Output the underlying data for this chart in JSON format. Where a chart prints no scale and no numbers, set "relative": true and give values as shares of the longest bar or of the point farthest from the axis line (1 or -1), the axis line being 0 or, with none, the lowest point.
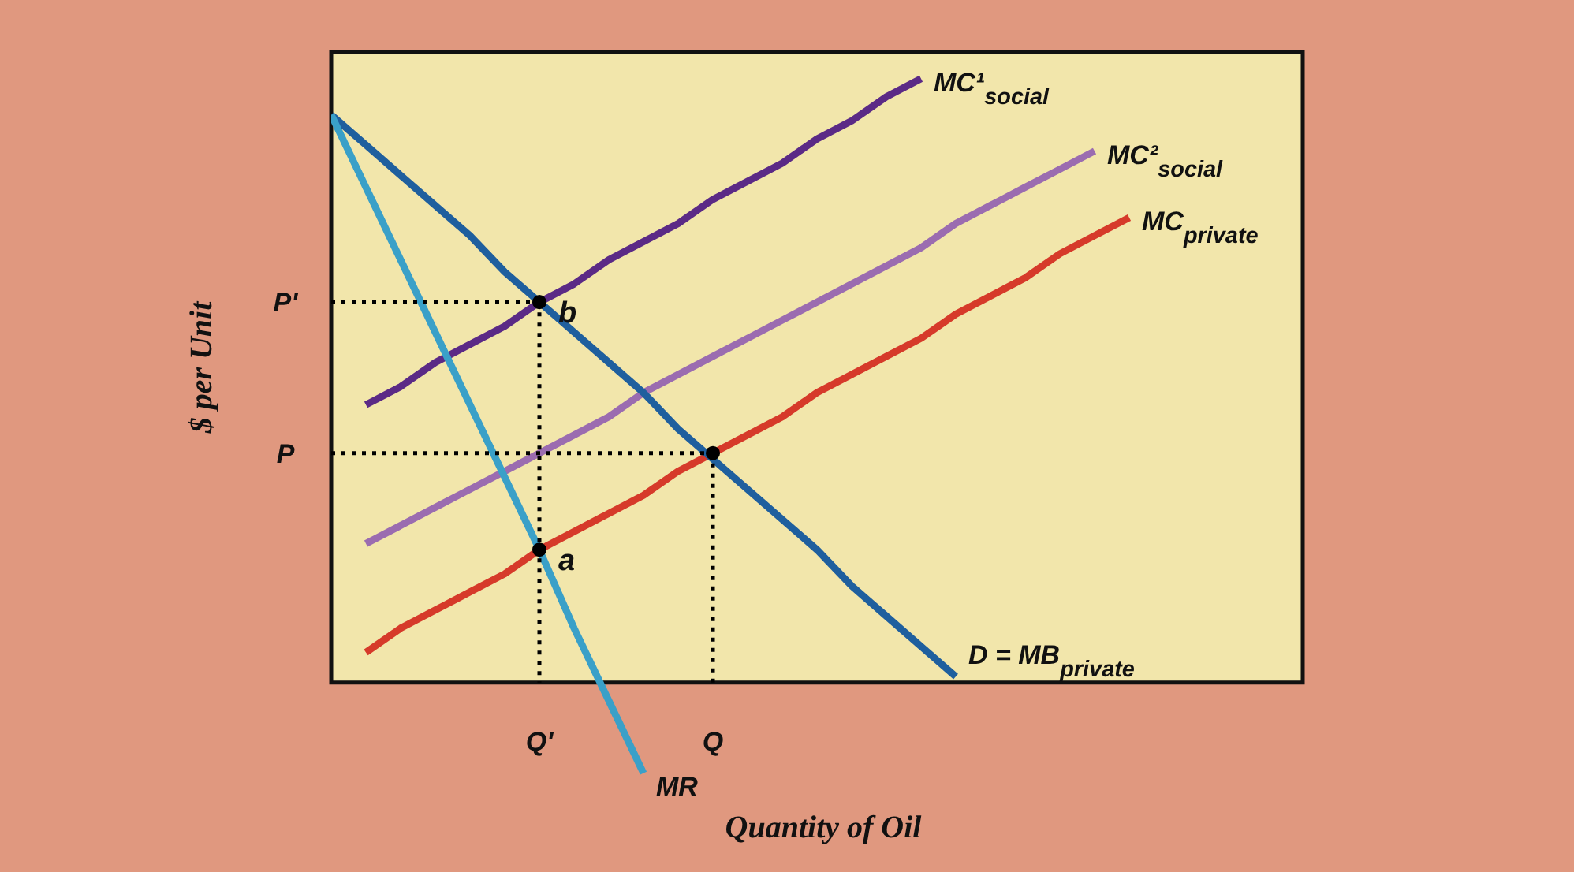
{
  "chart_data": {
    "type": "line",
    "relative": true,
    "xlabel": "Quantity of Oil",
    "ylabel": "$ per Unit",
    "categories": [
      null,
      null,
      null,
      null,
      null,
      null,
      "Q'",
      null,
      null,
      null,
      null,
      "Q",
      null,
      null,
      null,
      null,
      null,
      null,
      null,
      null,
      null,
      null,
      null,
      null,
      null,
      null,
      null,
      null,
      null
    ],
    "grid": false,
    "legend": false,
    "marker": "none",
    "line_style": "solid",
    "series": [
      {
        "name": "MC¹$_{social}$",
        "color": "#5b2a86",
        "values": [
          null,
          0.46,
          0.49,
          0.53,
          0.56,
          0.59,
          0.63,
          0.66,
          0.7,
          0.73,
          0.76,
          0.8,
          0.83,
          0.86,
          0.9,
          0.93,
          0.97,
          1.0,
          null,
          null,
          null,
          null,
          null,
          null,
          null,
          null,
          null,
          null,
          null
        ]
      },
      {
        "name": "MC²$_{social}$",
        "color": "#9b6cb0",
        "values": [
          null,
          0.23,
          0.26,
          0.29,
          0.32,
          0.35,
          0.38,
          0.41,
          0.44,
          0.48,
          0.51,
          0.54,
          0.57,
          0.6,
          0.63,
          0.66,
          0.69,
          0.72,
          0.76,
          0.79,
          0.82,
          0.85,
          0.88,
          null,
          null,
          null,
          null,
          null,
          null
        ]
      },
      {
        "name": "MC$_{private}$",
        "color": "#d63a2a",
        "values": [
          null,
          0.05,
          0.09,
          0.12,
          0.15,
          0.18,
          0.22,
          0.25,
          0.28,
          0.31,
          0.35,
          0.38,
          0.41,
          0.44,
          0.48,
          0.51,
          0.54,
          0.57,
          0.61,
          0.64,
          0.67,
          0.71,
          0.74,
          0.77,
          null,
          null,
          null,
          null,
          null
        ]
      },
      {
        "name": "D = MB$_{private}$",
        "color": "#1f5f9e",
        "values": [
          0.94,
          0.89,
          0.84,
          0.79,
          0.74,
          0.68,
          0.63,
          0.58,
          0.53,
          0.48,
          0.42,
          0.37,
          0.32,
          0.27,
          0.22,
          0.16,
          0.11,
          0.06,
          0.01,
          null,
          null,
          null,
          null,
          null,
          null,
          null,
          null,
          null,
          null
        ]
      },
      {
        "name": "MR",
        "color": "#3aa0c8",
        "values": [
          0.94,
          0.82,
          0.7,
          0.58,
          0.46,
          0.34,
          0.22,
          0.09,
          -0.03,
          -0.15,
          null,
          null,
          null,
          null,
          null,
          null,
          null,
          null,
          null,
          null,
          null,
          null,
          null,
          null,
          null,
          null,
          null,
          null,
          null
        ]
      },
      {
        "color": "#000000",
        "line_style": "dotted",
        "values": [
          0.63,
          0.63,
          0.63,
          0.63,
          0.63,
          0.63,
          0.63,
          null,
          null,
          null,
          null,
          null,
          null,
          null,
          null,
          null,
          null,
          null,
          null,
          null,
          null,
          null,
          null,
          null,
          null,
          null,
          null,
          null,
          null
        ]
      },
      {
        "color": "#000000",
        "line_style": "dotted",
        "values": [
          0.38,
          0.38,
          0.38,
          0.38,
          0.38,
          0.38,
          0.38,
          0.38,
          0.38,
          0.38,
          0.38,
          0.38,
          null,
          null,
          null,
          null,
          null,
          null,
          null,
          null,
          null,
          null,
          null,
          null,
          null,
          null,
          null,
          null,
          null
        ]
      },
      {
        "color": "#000000",
        "line_style": "dotted",
        "x": [
          "Q'",
          "Q'"
        ],
        "values": [
          0.63,
          0
        ]
      },
      {
        "color": "#000000",
        "line_style": "dotted",
        "x": [
          "Q",
          "Q"
        ],
        "values": [
          0.38,
          0
        ]
      },
      {
        "type": "scatter",
        "marker": "circle",
        "color": "#000000",
        "x": [
          "Q'",
          "Q'",
          "Q"
        ],
        "values": [
          0.63,
          0.22,
          0.38
        ]
      }
    ],
    "annotations": [
      {
        "text": "b",
        "x": "Q'",
        "y": 0.63
      },
      {
        "text": "a",
        "x": "Q'",
        "y": 0.22
      },
      "P'",
      "P"
    ]
  }
}
